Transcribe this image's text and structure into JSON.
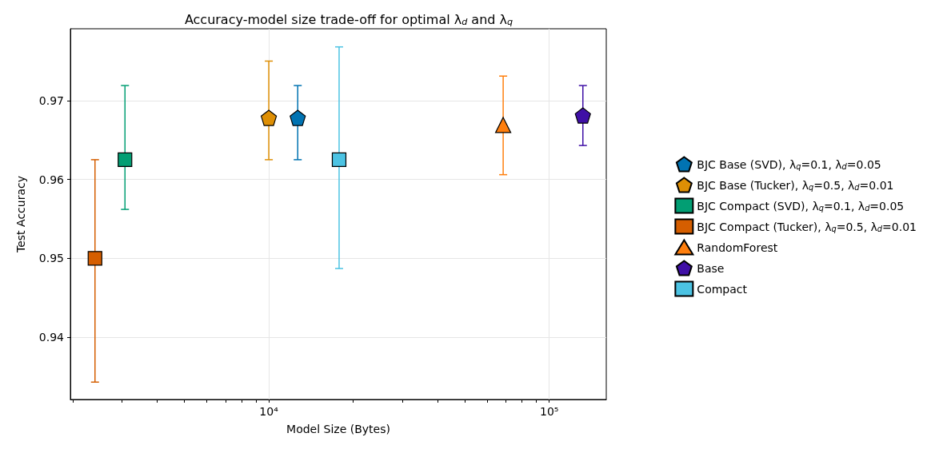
{
  "chart_data": {
    "type": "scatter",
    "title": "Accuracy-model size trade-off for optimal λ$_{d}$ and λ$_{q}$",
    "xlabel": "Model Size (Bytes)",
    "ylabel": "Test Accuracy",
    "log": "x",
    "grid": true,
    "legend": "right",
    "xlim": [
      1961,
      159700
    ],
    "xticks": [
      {
        "value": 2000,
        "label": null
      },
      {
        "value": 3000,
        "label": null
      },
      {
        "value": 4000,
        "label": null
      },
      {
        "value": 5000,
        "label": null
      },
      {
        "value": 6000,
        "label": null
      },
      {
        "value": 7000,
        "label": null
      },
      {
        "value": 8000,
        "label": null
      },
      {
        "value": 9000,
        "label": null
      },
      {
        "value": 10000,
        "label": "10⁴"
      },
      {
        "value": 20000,
        "label": null
      },
      {
        "value": 30000,
        "label": null
      },
      {
        "value": 40000,
        "label": null
      },
      {
        "value": 50000,
        "label": null
      },
      {
        "value": 60000,
        "label": null
      },
      {
        "value": 70000,
        "label": null
      },
      {
        "value": 80000,
        "label": null
      },
      {
        "value": 90000,
        "label": null
      },
      {
        "value": 100000,
        "label": "10⁵"
      }
    ],
    "ylim": [
      0.9321,
      0.9791
    ],
    "yticks": [
      0.94,
      0.95,
      0.96,
      0.97
    ],
    "series": [
      {
        "name": "BJC Base (SVD), λ$_{q}$=0.1, λ$_{d}$=0.05",
        "color": "#0173b2",
        "x": [
          12680
        ],
        "values": [
          0.9678
        ],
        "errors": [
          [
            0.9625,
            0.9719
          ]
        ]
      },
      {
        "name": "BJC Base (Tucker), λ$_{q}$=0.5, λ$_{d}$=0.01",
        "color": "#de8f05",
        "x": [
          10000
        ],
        "values": [
          0.9678
        ],
        "errors": [
          [
            0.9625,
            0.975
          ]
        ]
      },
      {
        "name": "BJC Compact (SVD), λ$_{q}$=0.1, λ$_{d}$=0.05",
        "color": "#029e73",
        "marker": "square",
        "x": [
          3070
        ],
        "values": [
          0.9625
        ],
        "errors": [
          [
            0.9562,
            0.9719
          ]
        ]
      },
      {
        "name": "BJC Compact (Tucker), λ$_{q}$=0.5, λ$_{d}$=0.01",
        "color": "#d55e00",
        "marker": "square",
        "x": [
          2400
        ],
        "values": [
          0.95
        ],
        "errors": [
          [
            0.9343,
            0.9625
          ]
        ]
      },
      {
        "name": "RandomForest",
        "color": "#ff7f0e",
        "marker": "triangle",
        "x": [
          68500
        ],
        "values": [
          0.9669
        ],
        "errors": [
          [
            0.9606,
            0.9731
          ]
        ]
      },
      {
        "name": "Base",
        "color": "#3f0fa6",
        "x": [
          131800
        ],
        "values": [
          0.9681
        ],
        "errors": [
          [
            0.9643,
            0.9719
          ]
        ]
      },
      {
        "name": "Compact",
        "color": "#4cc3e3",
        "marker": "square",
        "x": [
          17810
        ],
        "values": [
          0.9625
        ],
        "errors": [
          [
            0.9487,
            0.9768
          ]
        ]
      }
    ]
  }
}
